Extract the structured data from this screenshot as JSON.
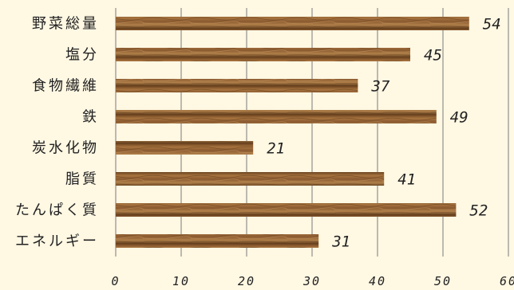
{
  "chart_data": {
    "type": "bar",
    "orientation": "horizontal",
    "categories": [
      "野菜総量",
      "塩分",
      "食物繊維",
      "鉄",
      "炭水化物",
      "脂質",
      "たんぱく質",
      "エネルギー"
    ],
    "values": [
      54,
      45,
      37,
      49,
      21,
      41,
      52,
      31
    ],
    "xlim": [
      0,
      60
    ],
    "xticks": [
      0,
      10,
      20,
      30,
      40,
      50,
      60
    ],
    "grid": true,
    "legend": "none",
    "data_labels": true,
    "colors": {
      "background": "#fff8e3",
      "bar": "#8a5a30",
      "bar_light": "#b98550",
      "bar_dark": "#5e3a1a",
      "grid": "#7a7a7a"
    }
  }
}
